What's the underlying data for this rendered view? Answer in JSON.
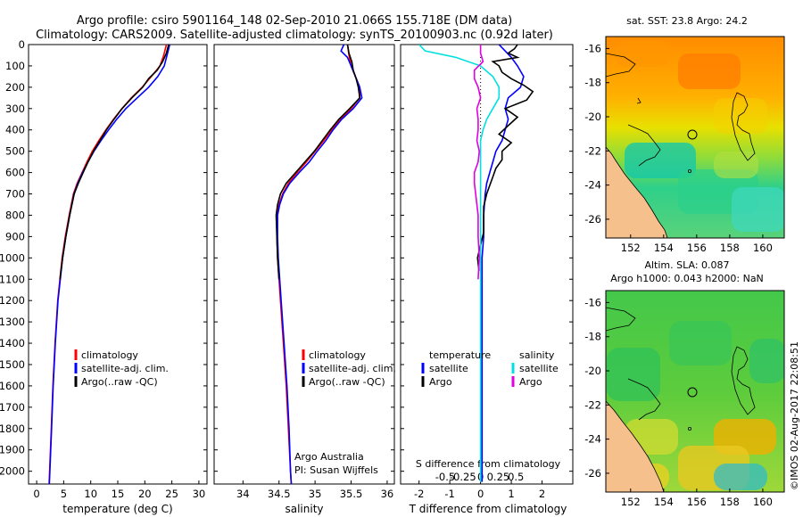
{
  "header": {
    "line1": "Argo profile: csiro 5901164_148 02-Sep-2010 21.066S 155.718E (DM data)",
    "line2": "Climatology: CARS2009. Satellite-adjusted climatology: synTS_20100903.nc (0.92d later)"
  },
  "colors": {
    "climatology": "#ff0000",
    "satellite": "#0000ff",
    "argo": "#000000",
    "sat_salinity": "#00e0e0",
    "argo_salinity": "#e000e0",
    "land": "#f5c08c"
  },
  "depth_ticks": [
    "0",
    "100",
    "200",
    "300",
    "400",
    "500",
    "600",
    "700",
    "800",
    "900",
    "1000",
    "1100",
    "1200",
    "1300",
    "1400",
    "1500",
    "1600",
    "1700",
    "1800",
    "1900",
    "2000"
  ],
  "chart_data": [
    {
      "type": "line",
      "name": "temperature",
      "xlabel": "temperature (deg C)",
      "ylabel": "depth",
      "xlim": [
        -1.5,
        31.5
      ],
      "ylim": [
        2060,
        0
      ],
      "x_ticks": [
        "0",
        "5",
        "10",
        "15",
        "20",
        "25",
        "30"
      ],
      "legend": [
        "climatology",
        "satellite-adj. clim.",
        "Argo(..raw -QC)"
      ],
      "series": [
        {
          "name": "climatology",
          "depth": [
            0,
            50,
            100,
            150,
            200,
            250,
            300,
            350,
            400,
            450,
            500,
            550,
            600,
            650,
            700,
            800,
            900,
            1000,
            1200,
            1400,
            1600,
            1800,
            2000,
            2060
          ],
          "values": [
            24.0,
            23.5,
            22.8,
            21.2,
            19.5,
            17.5,
            15.8,
            14.2,
            12.8,
            11.5,
            10.3,
            9.3,
            8.4,
            7.5,
            6.8,
            6.0,
            5.3,
            4.7,
            3.9,
            3.4,
            3.0,
            2.7,
            2.4,
            2.3
          ]
        },
        {
          "name": "satellite-adj. clim.",
          "depth": [
            0,
            50,
            100,
            150,
            200,
            250,
            300,
            350,
            400,
            450,
            500,
            550,
            600,
            650,
            700,
            800,
            900,
            1000,
            1200,
            1400,
            1600,
            1800,
            2000,
            2060
          ],
          "values": [
            24.6,
            24.1,
            23.6,
            22.4,
            20.7,
            18.6,
            16.5,
            14.8,
            13.3,
            11.9,
            10.6,
            9.5,
            8.5,
            7.6,
            6.9,
            6.1,
            5.4,
            4.8,
            3.95,
            3.45,
            3.05,
            2.75,
            2.45,
            2.35
          ]
        },
        {
          "name": "Argo(..raw -QC)",
          "depth": [
            0,
            40,
            80,
            120,
            160,
            200,
            250,
            300,
            350,
            400,
            450,
            500,
            550,
            600,
            650,
            700,
            800,
            900,
            1000,
            1100
          ],
          "values": [
            24.4,
            24.0,
            23.3,
            22.3,
            20.7,
            19.6,
            17.6,
            15.8,
            14.3,
            12.9,
            11.7,
            10.5,
            9.5,
            8.6,
            7.7,
            6.95,
            6.1,
            5.4,
            4.8,
            4.3
          ]
        }
      ]
    },
    {
      "type": "line",
      "name": "salinity",
      "xlabel": "salinity",
      "ylabel": "depth",
      "xlim": [
        33.6,
        36.1
      ],
      "ylim": [
        2060,
        0
      ],
      "x_ticks": [
        "34",
        "34.5",
        "35",
        "35.5",
        "36"
      ],
      "legend": [
        "climatology",
        "satellite-adj. clim.",
        "Argo(..raw -QC)"
      ],
      "annotation": [
        "Argo Australia",
        "PI: Susan Wijffels"
      ],
      "series": [
        {
          "name": "climatology",
          "depth": [
            0,
            50,
            100,
            150,
            200,
            250,
            300,
            350,
            400,
            450,
            500,
            550,
            600,
            650,
            700,
            750,
            800,
            900,
            1000,
            1200,
            1400,
            1600,
            1800,
            2000,
            2060
          ],
          "values": [
            35.45,
            35.47,
            35.5,
            35.56,
            35.62,
            35.62,
            35.5,
            35.35,
            35.23,
            35.12,
            35.0,
            34.88,
            34.75,
            34.63,
            34.55,
            34.5,
            34.47,
            34.47,
            34.48,
            34.52,
            34.56,
            34.6,
            34.63,
            34.66,
            34.67
          ]
        },
        {
          "name": "satellite-adj. clim.",
          "depth": [
            0,
            30,
            60,
            100,
            150,
            200,
            250,
            300,
            350,
            400,
            450,
            500,
            550,
            600,
            650,
            700,
            750,
            800,
            900,
            1000,
            1200,
            1400,
            1600,
            1800,
            2000,
            2060
          ],
          "values": [
            35.4,
            35.36,
            35.45,
            35.5,
            35.56,
            35.62,
            35.65,
            35.53,
            35.37,
            35.25,
            35.15,
            35.03,
            34.92,
            34.78,
            34.65,
            34.56,
            34.51,
            34.48,
            34.48,
            34.49,
            34.53,
            34.57,
            34.61,
            34.64,
            34.66,
            34.67
          ]
        },
        {
          "name": "Argo(..raw -QC)",
          "depth": [
            0,
            40,
            80,
            120,
            160,
            200,
            250,
            300,
            350,
            400,
            450,
            500,
            550,
            600,
            650,
            700,
            750,
            800,
            900,
            1000,
            1100
          ],
          "values": [
            35.45,
            35.47,
            35.51,
            35.53,
            35.57,
            35.6,
            35.62,
            35.48,
            35.33,
            35.21,
            35.1,
            34.99,
            34.86,
            34.73,
            34.6,
            34.52,
            34.48,
            34.46,
            34.47,
            34.48,
            34.5
          ]
        }
      ]
    },
    {
      "type": "line",
      "name": "differences",
      "xlabel": "T difference from climatology",
      "x2label": "S difference from climatology",
      "ylabel": "depth",
      "xlim": [
        -2.6,
        3.0
      ],
      "ylim": [
        2060,
        0
      ],
      "x_ticks": [
        "-2",
        "-1",
        "0",
        "1",
        "2"
      ],
      "s_ticks": [
        "-0.5",
        "-0.25",
        "0",
        "0.25",
        "0.5"
      ],
      "legend_temperature_title": "temperature",
      "legend_salinity_title": "salinity",
      "legend_temperature": [
        "satellite",
        "Argo"
      ],
      "legend_salinity": [
        "satellite",
        "Argo"
      ],
      "series": [
        {
          "name": "temperature satellite",
          "depth": [
            0,
            30,
            60,
            100,
            150,
            200,
            250,
            300,
            350,
            400,
            450,
            500,
            550,
            600,
            650,
            700,
            800,
            900,
            1000,
            1200,
            1400,
            1600,
            1800,
            2000,
            2050
          ],
          "values": [
            0.6,
            0.8,
            1.0,
            1.2,
            1.4,
            1.3,
            0.9,
            0.8,
            0.9,
            0.8,
            0.7,
            0.5,
            0.4,
            0.3,
            0.2,
            0.15,
            0.1,
            0.1,
            0.05,
            0.05,
            0.05,
            0.05,
            0.05,
            0.05,
            0.05
          ]
        },
        {
          "name": "temperature Argo",
          "depth": [
            0,
            20,
            40,
            60,
            80,
            100,
            130,
            160,
            190,
            220,
            260,
            300,
            340,
            380,
            420,
            460,
            500,
            540,
            580,
            620,
            660,
            700,
            760,
            820,
            880,
            940,
            1000,
            1060
          ],
          "values": [
            1.2,
            1.1,
            0.9,
            1.2,
            0.4,
            0.6,
            0.7,
            1.0,
            1.4,
            1.7,
            1.5,
            0.8,
            1.2,
            0.9,
            0.6,
            1.0,
            0.7,
            0.7,
            0.5,
            0.4,
            0.3,
            0.2,
            0.1,
            0.1,
            0.1,
            0.0,
            -0.1,
            -0.05
          ]
        },
        {
          "name": "salinity satellite",
          "depth": [
            0,
            30,
            60,
            100,
            150,
            200,
            250,
            300,
            350,
            400,
            450,
            500,
            550,
            600,
            650,
            700,
            800,
            900,
            1000,
            1200,
            1400,
            1600,
            1800,
            2000,
            2050
          ],
          "values": [
            -0.5,
            -0.45,
            -0.2,
            0.0,
            0.1,
            0.15,
            0.15,
            0.1,
            0.05,
            0.02,
            0.0,
            0.0,
            0.0,
            0.0,
            0.0,
            0.0,
            0.0,
            0.0,
            0.0,
            0.0,
            0.0,
            0.0,
            0.0,
            0.0,
            0.0
          ]
        },
        {
          "name": "salinity Argo",
          "depth": [
            0,
            40,
            80,
            120,
            160,
            200,
            250,
            300,
            350,
            400,
            450,
            500,
            550,
            600,
            650,
            700,
            750,
            800,
            900,
            1000,
            1100
          ],
          "values": [
            0.0,
            0.0,
            0.02,
            -0.05,
            -0.05,
            -0.02,
            0.0,
            -0.03,
            -0.02,
            -0.02,
            -0.03,
            -0.01,
            -0.02,
            -0.05,
            -0.05,
            -0.04,
            -0.03,
            -0.02,
            -0.02,
            -0.01,
            -0.02
          ]
        }
      ]
    },
    {
      "type": "heatmap",
      "name": "sst map",
      "title": "sat. SST: 23.8  Argo: 24.2",
      "xlim": [
        150.5,
        161.3
      ],
      "ylim": [
        -27.1,
        -15.3
      ],
      "x_ticks": [
        "152",
        "154",
        "156",
        "158",
        "160"
      ],
      "y_ticks": [
        "-16",
        "-18",
        "-20",
        "-22",
        "-24",
        "-26"
      ],
      "argo_position": [
        155.718,
        -21.066
      ]
    },
    {
      "type": "heatmap",
      "name": "sla map",
      "title_line1": "Altim. SLA: 0.087",
      "title_line2": "Argo h1000: 0.043 h2000: NaN",
      "xlim": [
        150.5,
        161.3
      ],
      "ylim": [
        -27.1,
        -15.3
      ],
      "x_ticks": [
        "152",
        "154",
        "156",
        "158",
        "160"
      ],
      "y_ticks": [
        "-16",
        "-18",
        "-20",
        "-22",
        "-24",
        "-26"
      ],
      "argo_position": [
        155.718,
        -21.066
      ]
    }
  ],
  "footer": {
    "watermark": "©IMOS 02-Aug-2017 22:08:51"
  }
}
